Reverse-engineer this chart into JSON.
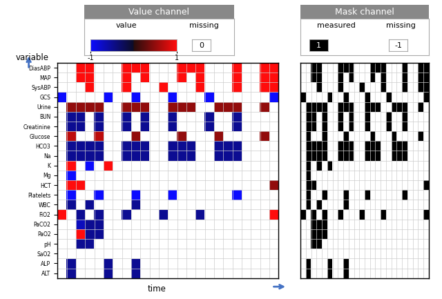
{
  "variables": [
    "DiasABP",
    "MAP",
    "SysABP",
    "GCS",
    "Urine",
    "BUN",
    "Creatinine",
    "Glucose",
    "HCO3",
    "Na",
    "K",
    "Mg",
    "HCT",
    "Platelets",
    "WBC",
    "FiO2",
    "PaCO2",
    "PaO2",
    "pH",
    "SaO2",
    "ALP",
    "ALT"
  ],
  "n_time": 24,
  "title_value": "Value channel",
  "title_mask": "Mask channel",
  "value_matrix": [
    [
      0,
      0,
      1,
      1,
      0,
      0,
      0,
      1,
      1,
      1,
      0,
      0,
      0,
      1,
      1,
      1,
      0,
      0,
      0,
      1,
      0,
      0,
      1,
      1
    ],
    [
      0,
      0,
      1,
      1,
      0,
      0,
      0,
      1,
      0,
      1,
      0,
      0,
      0,
      1,
      0,
      1,
      0,
      0,
      0,
      1,
      0,
      0,
      1,
      1
    ],
    [
      0,
      0,
      0,
      1,
      0,
      0,
      0,
      1,
      0,
      0,
      0,
      1,
      0,
      0,
      0,
      1,
      0,
      0,
      0,
      1,
      0,
      0,
      1,
      1
    ],
    [
      -1,
      0,
      0,
      0,
      0,
      -1,
      0,
      0,
      -1,
      0,
      0,
      0,
      -1,
      0,
      0,
      0,
      -1,
      0,
      0,
      0,
      0,
      0,
      0,
      -1
    ],
    [
      0,
      0.5,
      0.5,
      0.5,
      0.5,
      0,
      0,
      0.5,
      0.5,
      0.5,
      0,
      0,
      0.5,
      0.5,
      0.5,
      0,
      0,
      0.5,
      0.5,
      0.5,
      0,
      0,
      0.5,
      0
    ],
    [
      0,
      -0.5,
      -0.5,
      0,
      -0.5,
      0,
      0,
      -0.5,
      0,
      -0.5,
      0,
      0,
      -0.5,
      0,
      0,
      0,
      -0.5,
      0,
      0,
      -0.5,
      0,
      0,
      0,
      0
    ],
    [
      0,
      -0.5,
      -0.5,
      0,
      -0.5,
      0,
      0,
      -0.5,
      0,
      -0.5,
      0,
      0,
      -0.5,
      0,
      0,
      0,
      -0.5,
      0,
      0,
      -0.5,
      0,
      0,
      0,
      0
    ],
    [
      0,
      0.7,
      0,
      0,
      0.7,
      0,
      0,
      0,
      0.5,
      0,
      0,
      0,
      0,
      0.5,
      0,
      0,
      0,
      0.5,
      0,
      0,
      0,
      0,
      0.5,
      0
    ],
    [
      0,
      -0.5,
      -0.5,
      -0.5,
      -0.5,
      0,
      0,
      -0.5,
      -0.5,
      -0.5,
      0,
      0,
      -0.5,
      -0.5,
      -0.5,
      0,
      0,
      -0.5,
      -0.5,
      -0.5,
      0,
      0,
      0,
      0
    ],
    [
      0,
      -0.5,
      -0.5,
      -0.5,
      -0.5,
      0,
      0,
      -0.5,
      -0.5,
      -0.5,
      0,
      0,
      -0.5,
      -0.5,
      -0.5,
      0,
      0,
      -0.5,
      -0.5,
      -0.5,
      0,
      0,
      0,
      0
    ],
    [
      0,
      1,
      0,
      -1,
      0,
      1,
      0,
      0,
      0,
      0,
      0,
      0,
      0,
      0,
      0,
      0,
      0,
      0,
      0,
      0,
      0,
      0,
      0,
      0
    ],
    [
      0,
      -1,
      0,
      0,
      0,
      0,
      0,
      0,
      0,
      0,
      0,
      0,
      0,
      0,
      0,
      0,
      0,
      0,
      0,
      0,
      0,
      0,
      0,
      0
    ],
    [
      0,
      1,
      1,
      0,
      0,
      0,
      0,
      0,
      0,
      0,
      0,
      0,
      0,
      0,
      0,
      0,
      0,
      0,
      0,
      0,
      0,
      0,
      0,
      0.5
    ],
    [
      0,
      -1,
      0,
      0,
      -1,
      0,
      0,
      0,
      -1,
      0,
      0,
      0,
      -1,
      0,
      0,
      0,
      0,
      0,
      0,
      -1,
      0,
      0,
      0,
      0
    ],
    [
      0,
      -0.5,
      0,
      -0.5,
      0,
      0,
      0,
      0,
      -0.5,
      0,
      0,
      0,
      0,
      0,
      0,
      0,
      0,
      0,
      0,
      0,
      0,
      0,
      0,
      0
    ],
    [
      1,
      0,
      -0.5,
      0,
      -0.5,
      0,
      0,
      -0.5,
      0,
      0,
      0,
      -0.5,
      0,
      0,
      0,
      -0.5,
      0,
      0,
      0,
      0,
      0,
      0,
      0,
      1
    ],
    [
      0,
      0,
      -0.7,
      -0.5,
      -0.5,
      0,
      0,
      0,
      0,
      0,
      0,
      0,
      0,
      0,
      0,
      0,
      0,
      0,
      0,
      0,
      0,
      0,
      0,
      0
    ],
    [
      0,
      0,
      1,
      -0.5,
      -0.5,
      0,
      0,
      0,
      0,
      0,
      0,
      0,
      0,
      0,
      0,
      0,
      0,
      0,
      0,
      0,
      0,
      0,
      0,
      0
    ],
    [
      0,
      0,
      -0.5,
      -0.5,
      0,
      0,
      0,
      0,
      0,
      0,
      0,
      0,
      0,
      0,
      0,
      0,
      0,
      0,
      0,
      0,
      0,
      0,
      0,
      0
    ],
    [
      0,
      0,
      0,
      0,
      0,
      0,
      0,
      0,
      0,
      0,
      0,
      0,
      0,
      0,
      0,
      0,
      0,
      0,
      0,
      0,
      0,
      0,
      0,
      0
    ],
    [
      0,
      -0.5,
      0,
      0,
      0,
      -0.5,
      0,
      0,
      -0.5,
      0,
      0,
      0,
      0,
      0,
      0,
      0,
      0,
      0,
      0,
      0,
      0,
      0,
      0,
      0
    ],
    [
      0,
      -0.5,
      0,
      0,
      0,
      -0.5,
      0,
      0,
      -0.5,
      0,
      0,
      0,
      0,
      0,
      0,
      0,
      0,
      0,
      0,
      0,
      0,
      0,
      0,
      0
    ]
  ],
  "mask_matrix": [
    [
      0,
      0,
      1,
      1,
      0,
      0,
      0,
      1,
      1,
      1,
      0,
      0,
      0,
      1,
      1,
      1,
      0,
      0,
      0,
      1,
      0,
      0,
      1,
      1
    ],
    [
      0,
      0,
      1,
      1,
      0,
      0,
      0,
      1,
      0,
      1,
      0,
      0,
      0,
      1,
      0,
      1,
      0,
      0,
      0,
      1,
      0,
      0,
      1,
      1
    ],
    [
      0,
      0,
      0,
      1,
      0,
      0,
      0,
      1,
      0,
      0,
      0,
      1,
      0,
      0,
      0,
      1,
      0,
      0,
      0,
      1,
      0,
      0,
      1,
      1
    ],
    [
      1,
      0,
      0,
      0,
      0,
      1,
      0,
      0,
      1,
      0,
      0,
      0,
      1,
      0,
      0,
      0,
      1,
      0,
      0,
      0,
      0,
      0,
      0,
      1
    ],
    [
      0,
      1,
      1,
      1,
      1,
      0,
      0,
      1,
      1,
      1,
      0,
      0,
      1,
      1,
      1,
      0,
      0,
      1,
      1,
      1,
      0,
      0,
      1,
      0
    ],
    [
      0,
      1,
      1,
      0,
      1,
      0,
      0,
      1,
      0,
      1,
      0,
      0,
      1,
      0,
      0,
      0,
      1,
      0,
      0,
      1,
      0,
      0,
      0,
      0
    ],
    [
      0,
      1,
      1,
      0,
      1,
      0,
      0,
      1,
      0,
      1,
      0,
      0,
      1,
      0,
      0,
      0,
      1,
      0,
      0,
      1,
      0,
      0,
      0,
      0
    ],
    [
      0,
      1,
      0,
      0,
      1,
      0,
      0,
      0,
      1,
      0,
      0,
      0,
      0,
      1,
      0,
      0,
      0,
      1,
      0,
      0,
      0,
      0,
      1,
      0
    ],
    [
      0,
      1,
      1,
      1,
      1,
      0,
      0,
      1,
      1,
      1,
      0,
      0,
      1,
      1,
      1,
      0,
      0,
      1,
      1,
      1,
      0,
      0,
      0,
      0
    ],
    [
      0,
      1,
      1,
      1,
      1,
      0,
      0,
      1,
      1,
      1,
      0,
      0,
      1,
      1,
      1,
      0,
      0,
      1,
      1,
      1,
      0,
      0,
      0,
      0
    ],
    [
      0,
      1,
      0,
      1,
      0,
      1,
      0,
      0,
      0,
      0,
      0,
      0,
      0,
      0,
      0,
      0,
      0,
      0,
      0,
      0,
      0,
      0,
      0,
      0
    ],
    [
      0,
      1,
      0,
      0,
      0,
      0,
      0,
      0,
      0,
      0,
      0,
      0,
      0,
      0,
      0,
      0,
      0,
      0,
      0,
      0,
      0,
      0,
      0,
      0
    ],
    [
      0,
      1,
      1,
      0,
      0,
      0,
      0,
      0,
      0,
      0,
      0,
      0,
      0,
      0,
      0,
      0,
      0,
      0,
      0,
      0,
      0,
      0,
      0,
      1
    ],
    [
      0,
      1,
      0,
      0,
      1,
      0,
      0,
      0,
      1,
      0,
      0,
      0,
      1,
      0,
      0,
      0,
      0,
      0,
      0,
      1,
      0,
      0,
      0,
      0
    ],
    [
      0,
      1,
      0,
      1,
      0,
      0,
      0,
      0,
      1,
      0,
      0,
      0,
      0,
      0,
      0,
      0,
      0,
      0,
      0,
      0,
      0,
      0,
      0,
      0
    ],
    [
      1,
      0,
      1,
      0,
      1,
      0,
      0,
      1,
      0,
      0,
      0,
      1,
      0,
      0,
      0,
      1,
      0,
      0,
      0,
      0,
      0,
      0,
      0,
      1
    ],
    [
      0,
      0,
      1,
      1,
      1,
      0,
      0,
      0,
      0,
      0,
      0,
      0,
      0,
      0,
      0,
      0,
      0,
      0,
      0,
      0,
      0,
      0,
      0,
      0
    ],
    [
      0,
      0,
      1,
      1,
      1,
      0,
      0,
      0,
      0,
      0,
      0,
      0,
      0,
      0,
      0,
      0,
      0,
      0,
      0,
      0,
      0,
      0,
      0,
      0
    ],
    [
      0,
      0,
      1,
      1,
      0,
      0,
      0,
      0,
      0,
      0,
      0,
      0,
      0,
      0,
      0,
      0,
      0,
      0,
      0,
      0,
      0,
      0,
      0,
      0
    ],
    [
      0,
      0,
      0,
      0,
      0,
      0,
      0,
      0,
      0,
      0,
      0,
      0,
      0,
      0,
      0,
      0,
      0,
      0,
      0,
      0,
      0,
      0,
      0,
      0
    ],
    [
      0,
      1,
      0,
      0,
      0,
      1,
      0,
      0,
      1,
      0,
      0,
      0,
      0,
      0,
      0,
      0,
      0,
      0,
      0,
      0,
      0,
      0,
      0,
      0
    ],
    [
      0,
      1,
      0,
      0,
      0,
      1,
      0,
      0,
      1,
      0,
      0,
      0,
      0,
      0,
      0,
      0,
      0,
      0,
      0,
      0,
      0,
      0,
      0,
      0
    ]
  ],
  "bg_color": "#ffffff",
  "grid_color": "#cccccc",
  "axis_color": "#4472c4",
  "header_color": "#888888",
  "legend_border_color": "#aaaaaa"
}
